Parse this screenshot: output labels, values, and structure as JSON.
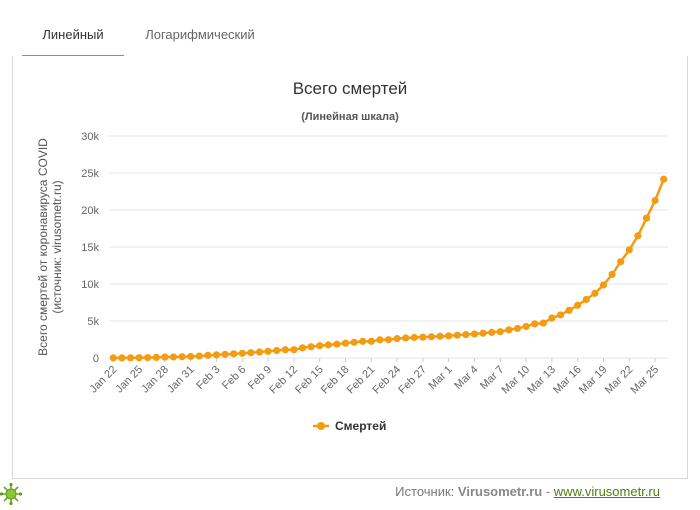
{
  "tabs": [
    {
      "label": "Линейный",
      "active": true
    },
    {
      "label": "Логарифмический",
      "active": false
    }
  ],
  "footer": {
    "prefix": "Источник:",
    "brand": "Virusometr.ru",
    "separator": "-",
    "link": "www.virusometr.ru"
  },
  "colors": {
    "series": "#f39c12",
    "tab_accent": "#2eaee6",
    "grid": "#e6e6e6",
    "footer_link": "#4f7f10"
  },
  "chart_data": {
    "type": "line",
    "title": "Всего смертей",
    "subtitle": "(Линейная шкала)",
    "ylabel": "Всего смертей от коронавируса COVID",
    "ylabel2": "(источник: virusometr.ru)",
    "xlabel": "",
    "ylim": [
      0,
      30000
    ],
    "yticks": [
      0,
      5000,
      10000,
      15000,
      20000,
      25000,
      30000
    ],
    "ytick_labels": [
      "0",
      "5k",
      "10k",
      "15k",
      "20k",
      "25k",
      "30k"
    ],
    "xtick_labels": [
      "Jan 22",
      "Jan 25",
      "Jan 28",
      "Jan 31",
      "Feb 3",
      "Feb 6",
      "Feb 9",
      "Feb 12",
      "Feb 15",
      "Feb 18",
      "Feb 21",
      "Feb 24",
      "Feb 27",
      "Mar 1",
      "Mar 4",
      "Mar 7",
      "Mar 10",
      "Mar 13",
      "Mar 16",
      "Mar 19",
      "Mar 22",
      "Mar 25"
    ],
    "grid": true,
    "legend_position": "bottom",
    "series": [
      {
        "name": "Смертей",
        "x": [
          "Jan 22",
          "Jan 23",
          "Jan 24",
          "Jan 25",
          "Jan 26",
          "Jan 27",
          "Jan 28",
          "Jan 29",
          "Jan 30",
          "Jan 31",
          "Feb 1",
          "Feb 2",
          "Feb 3",
          "Feb 4",
          "Feb 5",
          "Feb 6",
          "Feb 7",
          "Feb 8",
          "Feb 9",
          "Feb 10",
          "Feb 11",
          "Feb 12",
          "Feb 13",
          "Feb 14",
          "Feb 15",
          "Feb 16",
          "Feb 17",
          "Feb 18",
          "Feb 19",
          "Feb 20",
          "Feb 21",
          "Feb 22",
          "Feb 23",
          "Feb 24",
          "Feb 25",
          "Feb 26",
          "Feb 27",
          "Feb 28",
          "Feb 29",
          "Mar 1",
          "Mar 2",
          "Mar 3",
          "Mar 4",
          "Mar 5",
          "Mar 6",
          "Mar 7",
          "Mar 8",
          "Mar 9",
          "Mar 10",
          "Mar 11",
          "Mar 12",
          "Mar 13",
          "Mar 14",
          "Mar 15",
          "Mar 16",
          "Mar 17",
          "Mar 18",
          "Mar 19",
          "Mar 20",
          "Mar 21",
          "Mar 22",
          "Mar 23",
          "Mar 24",
          "Mar 25",
          "Mar 26"
        ],
        "values": [
          17,
          18,
          26,
          42,
          56,
          82,
          131,
          133,
          171,
          213,
          259,
          362,
          426,
          492,
          564,
          634,
          719,
          806,
          906,
          1013,
          1113,
          1118,
          1371,
          1523,
          1666,
          1770,
          1868,
          2007,
          2122,
          2247,
          2251,
          2458,
          2469,
          2629,
          2708,
          2770,
          2814,
          2872,
          2941,
          2996,
          3085,
          3160,
          3254,
          3348,
          3460,
          3558,
          3803,
          3996,
          4262,
          4615,
          4720,
          5404,
          5819,
          6440,
          7126,
          7905,
          8733,
          9867,
          11299,
          13015,
          14613,
          16514,
          18891,
          21283,
          24154
        ]
      }
    ]
  }
}
